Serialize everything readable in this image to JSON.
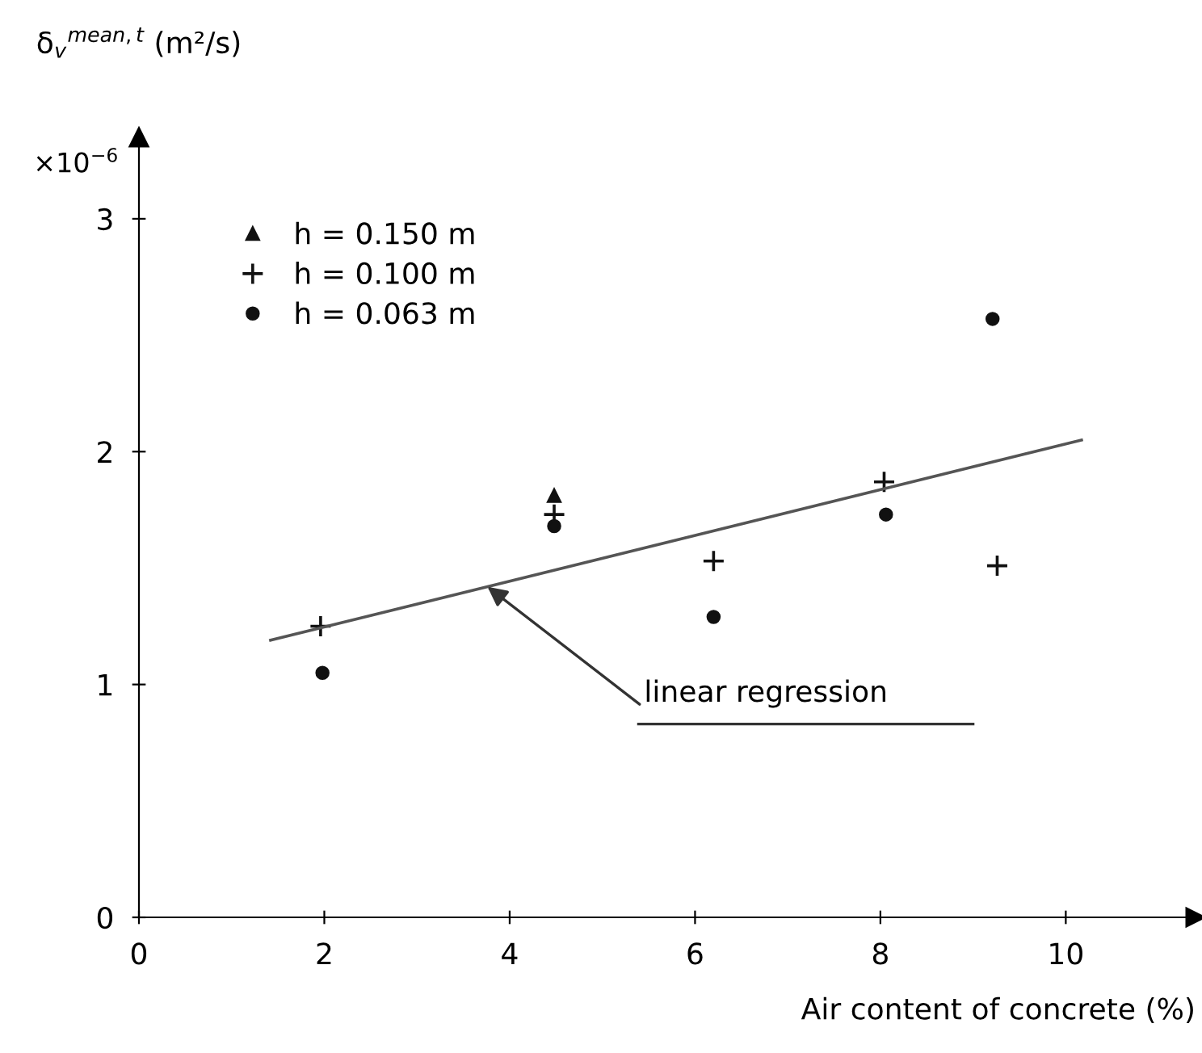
{
  "chart_data": {
    "type": "scatter",
    "xlabel": "Air content of concrete (%)",
    "ylabel": "δ$_{v}$$^{mean,t}$ (m²/s)",
    "xlim": [
      0,
      11.4
    ],
    "ylim": [
      0,
      3.35
    ],
    "xticks": [
      0,
      2,
      4,
      6,
      8,
      10
    ],
    "yticks": [
      0,
      1,
      2,
      3
    ],
    "grid": false,
    "legend": "top left",
    "series": [
      {
        "name": "h = 0.150 m",
        "color": "#111111",
        "marker": "triangle",
        "x": [
          4.48
        ],
        "values": [
          1.81
        ]
      },
      {
        "name": "h = 0.100 m",
        "color": "#111111",
        "marker": "cross",
        "x": [
          1.96,
          4.48,
          6.2,
          8.04,
          9.26
        ],
        "values": [
          1.25,
          1.73,
          1.53,
          1.87,
          1.51
        ]
      },
      {
        "name": "h = 0.063 m",
        "color": "#111111",
        "marker": "circle",
        "x": [
          1.98,
          4.48,
          6.2,
          8.06,
          9.21
        ],
        "values": [
          1.05,
          1.68,
          1.29,
          1.73,
          2.57
        ]
      },
      {
        "type": "line",
        "color": "#555555",
        "marker": "none",
        "x": [
          1.42,
          10.17
        ],
        "values": [
          1.19,
          2.05
        ]
      }
    ],
    "annotations": [
      "×10$^{−6}$",
      {
        "text": "linear regression",
        "x": 3.76,
        "y": 1.42
      }
    ]
  }
}
